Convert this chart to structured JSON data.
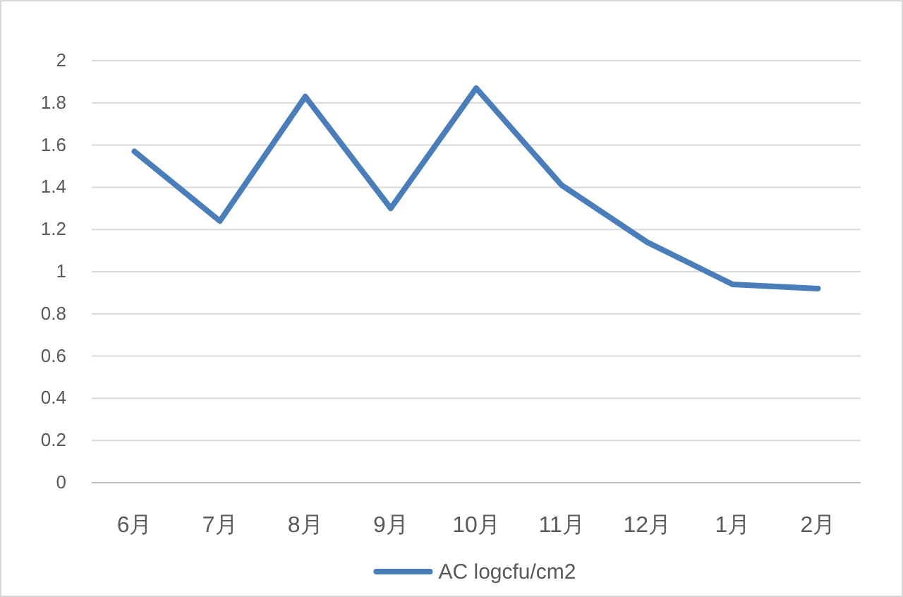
{
  "chart_data": {
    "type": "line",
    "categories": [
      "6月",
      "7月",
      "8月",
      "9月",
      "10月",
      "11月",
      "12月",
      "1月",
      "2月"
    ],
    "series": [
      {
        "name": "AC logcfu/cm2",
        "color": "#4a7ebb",
        "values": [
          1.57,
          1.24,
          1.83,
          1.3,
          1.87,
          1.41,
          1.14,
          0.94,
          0.92
        ]
      }
    ],
    "ylim": [
      0,
      2
    ],
    "yticks": [
      0,
      0.2,
      0.4,
      0.6,
      0.8,
      1,
      1.2,
      1.4,
      1.6,
      1.8,
      2
    ],
    "grid": "y",
    "legend": "bottom",
    "marker": "none",
    "line_style": "solid"
  }
}
